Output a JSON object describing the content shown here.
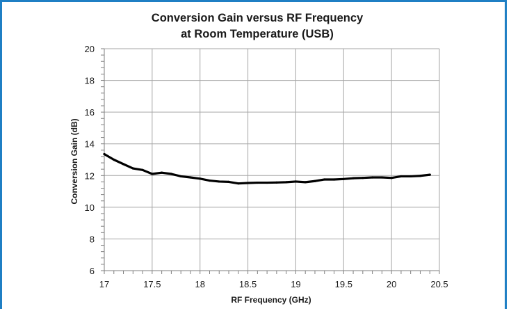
{
  "chart_data": {
    "type": "line",
    "title": [
      "Conversion Gain versus RF Frequency",
      "at Room Temperature (USB)"
    ],
    "xlabel": "RF Frequency (GHz)",
    "ylabel": "Conversion Gain (dB)",
    "xlim": [
      17,
      20.5
    ],
    "ylim": [
      6,
      20
    ],
    "x_ticks": [
      "17",
      "17.5",
      "18",
      "18.5",
      "19",
      "19.5",
      "20",
      "20.5"
    ],
    "y_ticks": [
      "6",
      "8",
      "10",
      "12",
      "14",
      "16",
      "18",
      "20"
    ],
    "grid": true,
    "legend": false,
    "series": [
      {
        "color": "#000000",
        "x": [
          17.0,
          17.1,
          17.2,
          17.3,
          17.4,
          17.5,
          17.6,
          17.7,
          17.8,
          17.9,
          18.0,
          18.1,
          18.2,
          18.3,
          18.4,
          18.5,
          18.6,
          18.7,
          18.8,
          18.9,
          19.0,
          19.1,
          19.2,
          19.3,
          19.4,
          19.5,
          19.6,
          19.7,
          19.8,
          19.9,
          20.0,
          20.1,
          20.2,
          20.3,
          20.4
        ],
        "y": [
          13.35,
          13.0,
          12.72,
          12.45,
          12.35,
          12.1,
          12.18,
          12.1,
          11.95,
          11.88,
          11.8,
          11.68,
          11.62,
          11.6,
          11.5,
          11.53,
          11.55,
          11.55,
          11.56,
          11.58,
          11.62,
          11.58,
          11.65,
          11.75,
          11.75,
          11.78,
          11.83,
          11.85,
          11.88,
          11.88,
          11.85,
          11.95,
          11.95,
          11.98,
          12.05
        ]
      }
    ]
  }
}
